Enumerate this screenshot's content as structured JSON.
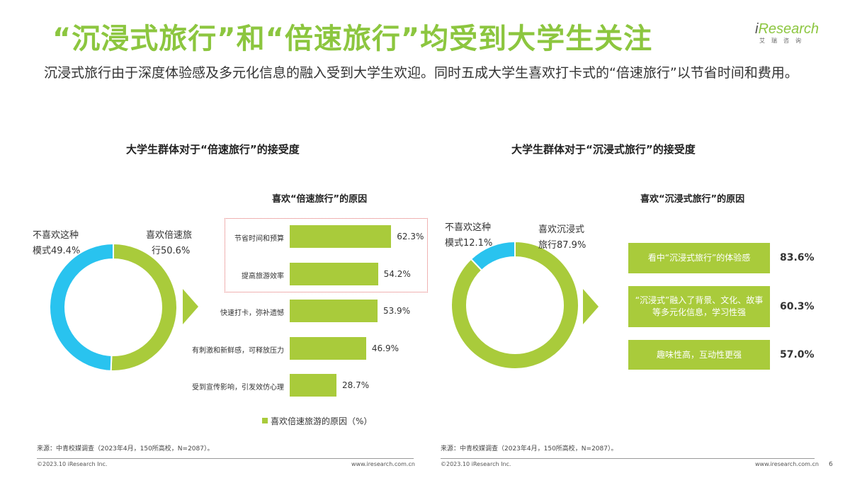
{
  "header": {
    "title": "“沉浸式旅行”和“倍速旅行”均受到大学生关注",
    "subtitle": "沉浸式旅行由于深度体验感及多元化信息的融入受到大学生欢迎。同时五成大学生喜欢打卡式的“倍速旅行”以节省时间和费用。"
  },
  "logo": {
    "name_i": "i",
    "name_rest": "Research",
    "sub": "艾瑞咨询"
  },
  "colors": {
    "green": "#a9cb3b",
    "blue": "#29c3ef",
    "title_green": "#8cc63f",
    "arrow": "#a9cb3b",
    "dash": "#e06666"
  },
  "left": {
    "panel_title": "大学生群体对于“倍速旅行”的接受度",
    "reason_title": "喜欢“倍速旅行”的原因",
    "donut": {
      "dislike_label_1": "不喜欢这种",
      "dislike_label_2": "模式49.4%",
      "like_label_1": "喜欢倍速旅",
      "like_label_2": "行50.6%"
    },
    "bars": [
      {
        "label": "节省时间和预算",
        "value_text": "62.3%"
      },
      {
        "label": "提高旅游效率",
        "value_text": "54.2%"
      },
      {
        "label": "快速打卡，弥补遗憾",
        "value_text": "53.9%"
      },
      {
        "label": "有刺激和新鲜感，可释放压力",
        "value_text": "46.9%"
      },
      {
        "label": "受到宣传影响，引发效仿心理",
        "value_text": "28.7%"
      }
    ],
    "legend": "喜欢倍速旅游的原因（%）",
    "source": "来源：中青校媒调查（2023年4月，150所高校，N=2087）。",
    "copyright": "©2023.10 iResearch Inc.",
    "url": "www.iresearch.com.cn"
  },
  "right": {
    "panel_title": "大学生群体对于“沉浸式旅行”的接受度",
    "reason_title": "喜欢“沉浸式旅行”的原因",
    "donut": {
      "dislike_label_1": "不喜欢这种",
      "dislike_label_2": "模式12.1%",
      "like_label_1": "喜欢沉浸式",
      "like_label_2": "旅行87.9%"
    },
    "reasons": [
      {
        "text": "看中“沉浸式旅行”的体验感",
        "value_text": "83.6%"
      },
      {
        "text": "“沉浸式”融入了背景、文化、故事等多元化信息，学习性强",
        "value_text": "60.3%"
      },
      {
        "text": "趣味性高，互动性更强",
        "value_text": "57.0%"
      }
    ],
    "source": "来源：中青校媒调查（2023年4月，150所高校，N=2087）。",
    "copyright": "©2023.10 iResearch Inc.",
    "url": "www.iresearch.com.cn",
    "page_number": "6"
  },
  "chart_data": [
    {
      "type": "pie",
      "variant": "donut",
      "title": "大学生群体对于“倍速旅行”的接受度",
      "categories": [
        "喜欢倍速旅行",
        "不喜欢这种模式"
      ],
      "values": [
        50.6,
        49.4
      ],
      "colors": [
        "#a9cb3b",
        "#29c3ef"
      ]
    },
    {
      "type": "bar",
      "orientation": "horizontal",
      "title": "喜欢“倍速旅行”的原因",
      "categories": [
        "节省时间和预算",
        "提高旅游效率",
        "快速打卡，弥补遗憾",
        "有刺激和新鲜感，可释放压力",
        "受到宣传影响，引发效仿心理"
      ],
      "values": [
        62.3,
        54.2,
        53.9,
        46.9,
        28.7
      ],
      "unit": "%",
      "legend": "喜欢倍速旅游的原因（%）"
    },
    {
      "type": "pie",
      "variant": "donut",
      "title": "大学生群体对于“沉浸式旅行”的接受度",
      "categories": [
        "喜欢沉浸式旅行",
        "不喜欢这种模式"
      ],
      "values": [
        87.9,
        12.1
      ],
      "colors": [
        "#a9cb3b",
        "#29c3ef"
      ]
    },
    {
      "type": "bar",
      "orientation": "horizontal",
      "title": "喜欢“沉浸式旅行”的原因",
      "categories": [
        "看中“沉浸式旅行”的体验感",
        "“沉浸式”融入了背景、文化、故事等多元化信息，学习性强",
        "趣味性高，互动性更强"
      ],
      "values": [
        83.6,
        60.3,
        57.0
      ],
      "unit": "%"
    }
  ]
}
